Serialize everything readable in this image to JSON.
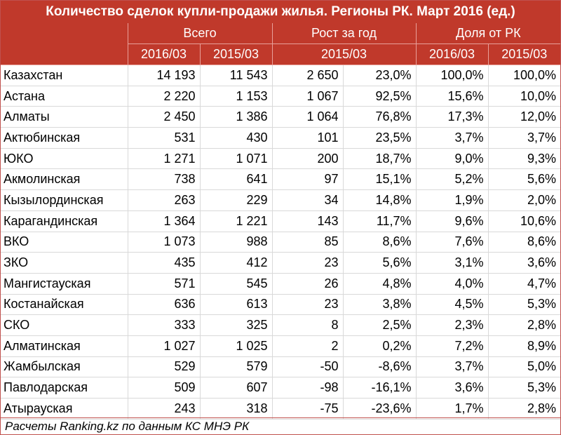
{
  "chart_data": {
    "type": "table",
    "title": "Количество сделок купли-продажи жилья. Регионы РК. Март 2016 (ед.)",
    "header_groups": [
      "Всего",
      "Рост за год",
      "Доля от РК"
    ],
    "subheaders": [
      "2016/03",
      "2015/03",
      "2015/03",
      "2016/03",
      "2015/03"
    ],
    "rows": [
      {
        "region": "Казахстан",
        "v2016": "14 193",
        "v2015": "11 543",
        "growth_abs": "2 650",
        "growth_pct": "23,0%",
        "share2016": "100,0%",
        "share2015": "100,0%"
      },
      {
        "region": "Астана",
        "v2016": "2 220",
        "v2015": "1 153",
        "growth_abs": "1 067",
        "growth_pct": "92,5%",
        "share2016": "15,6%",
        "share2015": "10,0%"
      },
      {
        "region": "Алматы",
        "v2016": "2 450",
        "v2015": "1 386",
        "growth_abs": "1 064",
        "growth_pct": "76,8%",
        "share2016": "17,3%",
        "share2015": "12,0%"
      },
      {
        "region": "Актюбинская",
        "v2016": "531",
        "v2015": "430",
        "growth_abs": "101",
        "growth_pct": "23,5%",
        "share2016": "3,7%",
        "share2015": "3,7%"
      },
      {
        "region": "ЮКО",
        "v2016": "1 271",
        "v2015": "1 071",
        "growth_abs": "200",
        "growth_pct": "18,7%",
        "share2016": "9,0%",
        "share2015": "9,3%"
      },
      {
        "region": "Акмолинская",
        "v2016": "738",
        "v2015": "641",
        "growth_abs": "97",
        "growth_pct": "15,1%",
        "share2016": "5,2%",
        "share2015": "5,6%"
      },
      {
        "region": "Кызылординская",
        "v2016": "263",
        "v2015": "229",
        "growth_abs": "34",
        "growth_pct": "14,8%",
        "share2016": "1,9%",
        "share2015": "2,0%"
      },
      {
        "region": "Карагандинская",
        "v2016": "1 364",
        "v2015": "1 221",
        "growth_abs": "143",
        "growth_pct": "11,7%",
        "share2016": "9,6%",
        "share2015": "10,6%"
      },
      {
        "region": "ВКО",
        "v2016": "1 073",
        "v2015": "988",
        "growth_abs": "85",
        "growth_pct": "8,6%",
        "share2016": "7,6%",
        "share2015": "8,6%"
      },
      {
        "region": "ЗКО",
        "v2016": "435",
        "v2015": "412",
        "growth_abs": "23",
        "growth_pct": "5,6%",
        "share2016": "3,1%",
        "share2015": "3,6%"
      },
      {
        "region": "Мангистауская",
        "v2016": "571",
        "v2015": "545",
        "growth_abs": "26",
        "growth_pct": "4,8%",
        "share2016": "4,0%",
        "share2015": "4,7%"
      },
      {
        "region": "Костанайская",
        "v2016": "636",
        "v2015": "613",
        "growth_abs": "23",
        "growth_pct": "3,8%",
        "share2016": "4,5%",
        "share2015": "5,3%"
      },
      {
        "region": "СКО",
        "v2016": "333",
        "v2015": "325",
        "growth_abs": "8",
        "growth_pct": "2,5%",
        "share2016": "2,3%",
        "share2015": "2,8%"
      },
      {
        "region": "Алматинская",
        "v2016": "1 027",
        "v2015": "1 025",
        "growth_abs": "2",
        "growth_pct": "0,2%",
        "share2016": "7,2%",
        "share2015": "8,9%"
      },
      {
        "region": "Жамбылская",
        "v2016": "529",
        "v2015": "579",
        "growth_abs": "-50",
        "growth_pct": "-8,6%",
        "share2016": "3,7%",
        "share2015": "5,0%"
      },
      {
        "region": "Павлодарская",
        "v2016": "509",
        "v2015": "607",
        "growth_abs": "-98",
        "growth_pct": "-16,1%",
        "share2016": "3,6%",
        "share2015": "5,3%"
      },
      {
        "region": "Атырауская",
        "v2016": "243",
        "v2015": "318",
        "growth_abs": "-75",
        "growth_pct": "-23,6%",
        "share2016": "1,7%",
        "share2015": "2,8%"
      }
    ],
    "source": "Расчеты Ranking.kz по данным КС МНЭ РК"
  }
}
